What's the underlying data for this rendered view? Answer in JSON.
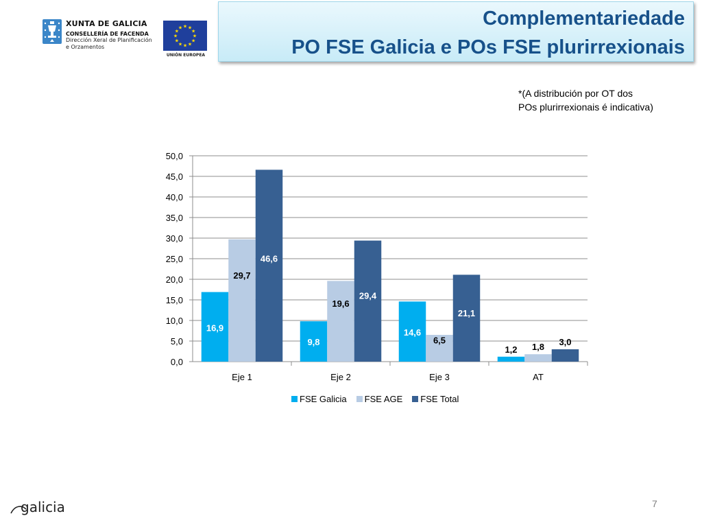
{
  "header": {
    "org_name": "XUNTA DE GALICIA",
    "department": "CONSELLERÍA DE FACENDA",
    "sub_line_1": "Dirección Xeral de Planificación",
    "sub_line_2": "e Orzamentos",
    "eu_caption": "UNIÓN EUROPEA",
    "eu_flag_color": "#1f3f9c",
    "eu_star_color": "#ffdd00"
  },
  "title": {
    "line1": "Complementariedade",
    "line2": "PO FSE Galicia e POs FSE plurirrexionais",
    "color": "#17518a"
  },
  "note": {
    "line1": "*(A distribución por OT dos",
    "line2": "POs plurirrexionais é indicativa)"
  },
  "chart_data": {
    "type": "bar",
    "categories": [
      "Eje 1",
      "Eje 2",
      "Eje 3",
      "AT"
    ],
    "series": [
      {
        "name": "FSE Galicia",
        "values": [
          16.9,
          9.8,
          14.6,
          1.2
        ],
        "color": "#00aeef",
        "label_color": "#ffffff",
        "labels": [
          "16,9",
          "9,8",
          "14,6",
          "1,2"
        ]
      },
      {
        "name": "FSE AGE",
        "values": [
          29.7,
          19.6,
          6.5,
          1.8
        ],
        "color": "#b8cce4",
        "label_color": "#000000",
        "labels": [
          "29,7",
          "19,6",
          "6,5",
          "1,8"
        ]
      },
      {
        "name": "FSE Total",
        "values": [
          46.6,
          29.4,
          21.1,
          3.0
        ],
        "color": "#376092",
        "label_color": "#ffffff",
        "labels": [
          "46,6",
          "29,4",
          "21,1",
          "3,0"
        ]
      }
    ],
    "y_ticks": [
      "0,0",
      "5,0",
      "10,0",
      "15,0",
      "20,0",
      "25,0",
      "30,0",
      "35,0",
      "40,0",
      "45,0",
      "50,0"
    ],
    "ylim": [
      0,
      50
    ],
    "grid": true,
    "legend_position": "bottom"
  },
  "page_number": "7",
  "footer_logo_text": "galicia"
}
